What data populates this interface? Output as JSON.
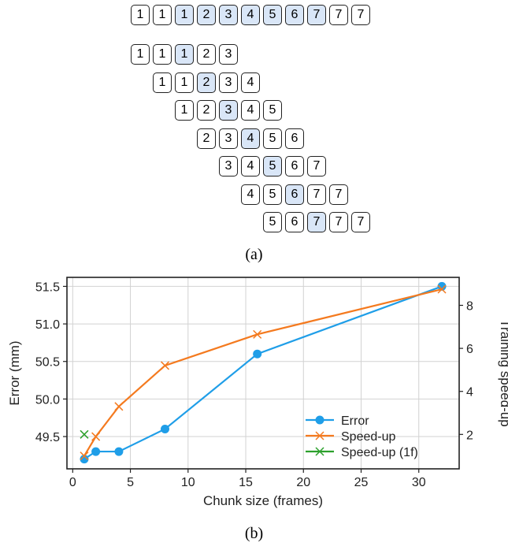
{
  "panel_a": {
    "caption": "(a)",
    "top_row": [
      1,
      1,
      1,
      2,
      3,
      4,
      5,
      6,
      7,
      7,
      7
    ],
    "top_row_highlight": [
      2,
      3,
      4,
      5,
      6,
      7,
      8
    ],
    "chunks": [
      [
        1,
        1,
        1,
        2,
        3
      ],
      [
        1,
        1,
        2,
        3,
        4
      ],
      [
        1,
        2,
        3,
        4,
        5
      ],
      [
        2,
        3,
        4,
        5,
        6
      ],
      [
        3,
        4,
        5,
        6,
        7
      ],
      [
        4,
        5,
        6,
        7,
        7
      ],
      [
        5,
        6,
        7,
        7,
        7
      ]
    ],
    "chunk_highlight_index": 2
  },
  "panel_b": {
    "caption": "(b)"
  },
  "chart_data": {
    "type": "line",
    "xlabel": "Chunk size (frames)",
    "ylabel": "Error (mm)",
    "y2label": "Training speed-up",
    "xlim": [
      -0.5,
      33.5
    ],
    "ylim": [
      49.07,
      51.62
    ],
    "y2lim": [
      0.4,
      9.3
    ],
    "xticks": [
      0,
      5,
      10,
      15,
      20,
      25,
      30
    ],
    "yticks": [
      49.5,
      50.0,
      50.5,
      51.0,
      51.5
    ],
    "y2ticks": [
      2,
      4,
      6,
      8
    ],
    "grid": true,
    "legend": "bottom-right",
    "series": [
      {
        "name": "Error",
        "axis": "left",
        "marker": "circle",
        "color": "#1f9ee8",
        "x": [
          1,
          2,
          4,
          8,
          16,
          32
        ],
        "y": [
          49.2,
          49.3,
          49.3,
          49.6,
          50.6,
          51.5
        ]
      },
      {
        "name": "Speed-up",
        "axis": "right",
        "marker": "x",
        "color": "#f47a1f",
        "x": [
          1,
          2,
          4,
          8,
          16,
          32
        ],
        "y": [
          1.0,
          1.9,
          3.3,
          5.2,
          6.65,
          8.75
        ]
      },
      {
        "name": "Speed-up (1f)",
        "axis": "right",
        "marker": "x",
        "color": "#2ca02c",
        "x": [
          1
        ],
        "y": [
          2.0
        ]
      }
    ]
  }
}
